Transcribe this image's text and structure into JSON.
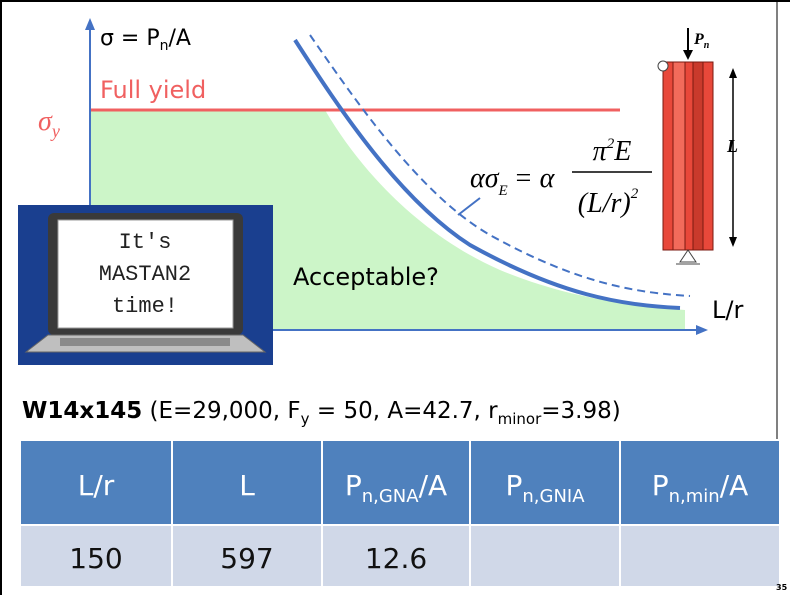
{
  "plot": {
    "y_axis_label": {
      "base": "σ = P",
      "sub": "n",
      "tail": "/A"
    },
    "full_yield": "Full yield",
    "sigma_y": {
      "base": "σ",
      "sub": "y"
    },
    "x_axis_label": "L/r",
    "region_label": "Acceptable?",
    "formula": {
      "lhs": "ασ",
      "lhs_sub": "E",
      "equals": "= α",
      "numerator": "π",
      "numerator_sup": "2",
      "numerator_tail": "E",
      "denominator": "(L/r)",
      "denominator_sup": "2"
    }
  },
  "laptop_screen": [
    "It's",
    "MASTAN2",
    "time!"
  ],
  "column": {
    "load": {
      "base": "P",
      "sub": "n"
    },
    "length": "L"
  },
  "section": {
    "name": "W14x145",
    "props_1": " (E=29,000, F",
    "fy_sub": "y",
    "props_2": " = 50, A=42.7, r",
    "r_sub": "minor",
    "props_3": "=3.98)"
  },
  "table": {
    "headers": [
      {
        "base": "L/r"
      },
      {
        "base": "L"
      },
      {
        "base": "P",
        "sub": "n,GNA",
        "tail": "/A"
      },
      {
        "base": "P",
        "sub": "n,GNIA"
      },
      {
        "base": "P",
        "sub": "n,min",
        "tail": "/A"
      }
    ],
    "rows": [
      [
        150,
        597,
        12.6
      ]
    ]
  },
  "page_number": "35"
}
